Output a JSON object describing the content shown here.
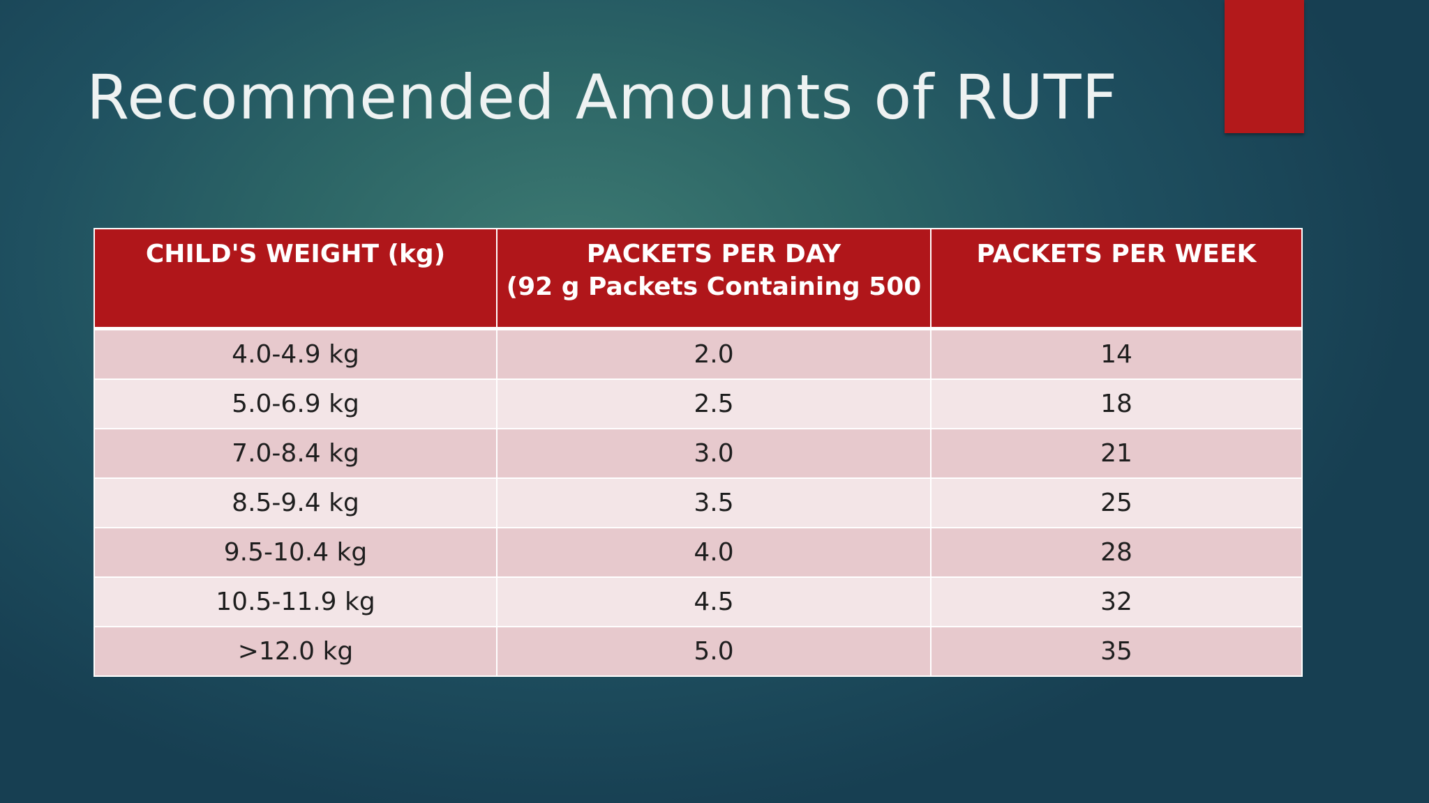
{
  "title": "Recommended Amounts of RUTF",
  "accent_color": "#b3191b",
  "table": {
    "headers": [
      {
        "line1": "CHILD'S WEIGHT (kg)",
        "line2": ""
      },
      {
        "line1": "PACKETS PER DAY",
        "line2": "(92 g Packets Containing 500"
      },
      {
        "line1": "PACKETS PER WEEK",
        "line2": ""
      }
    ],
    "rows": [
      [
        "4.0-4.9 kg",
        "2.0",
        "14"
      ],
      [
        "5.0-6.9 kg",
        "2.5",
        "18"
      ],
      [
        "7.0-8.4 kg",
        "3.0",
        "21"
      ],
      [
        "8.5-9.4 kg",
        "3.5",
        "25"
      ],
      [
        "9.5-10.4 kg",
        "4.0",
        "28"
      ],
      [
        "10.5-11.9 kg",
        "4.5",
        "32"
      ],
      [
        ">12.0 kg",
        "5.0",
        "35"
      ]
    ]
  }
}
